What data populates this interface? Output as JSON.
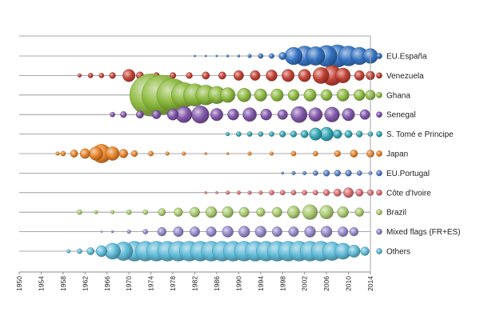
{
  "chart_data": {
    "type": "scatter",
    "subtype": "bubble-timeline",
    "title": "",
    "xlabel": "",
    "ylabel": "",
    "xlim": [
      1950,
      2014
    ],
    "x_ticks": [
      1950,
      1954,
      1958,
      1962,
      1966,
      1970,
      1974,
      1978,
      1982,
      1986,
      1990,
      1994,
      1998,
      2002,
      2006,
      2010,
      2014
    ],
    "x_tick_labels": [
      "1950",
      "1954",
      "1958",
      "1962",
      "1966",
      "1970",
      "1974",
      "1978",
      "1982",
      "1986",
      "1990",
      "1994",
      "1998",
      "2002",
      "2006",
      "2010",
      "2014"
    ],
    "legend_position": "right",
    "grid": "horizontal lines per series",
    "series": [
      {
        "name": "EU.España",
        "color": "#2f6fc0",
        "x": [
          1982,
          1984,
          1986,
          1988,
          1990,
          1992,
          1994,
          1996,
          1998,
          2000,
          2002,
          2004,
          2006,
          2008,
          2010,
          2012,
          2014
        ],
        "values": [
          1,
          1,
          1,
          2,
          2,
          3,
          4,
          4,
          6,
          14,
          16,
          15,
          17,
          18,
          16,
          14,
          12
        ]
      },
      {
        "name": "Venezuela",
        "color": "#c0392b",
        "x": [
          1961,
          1963,
          1965,
          1967,
          1970,
          1972,
          1975,
          1978,
          1981,
          1984,
          1987,
          1990,
          1993,
          1996,
          1999,
          2002,
          2005,
          2007,
          2009,
          2012,
          2014
        ],
        "values": [
          3,
          4,
          4,
          5,
          10,
          6,
          5,
          5,
          5,
          6,
          6,
          8,
          8,
          9,
          10,
          10,
          13,
          16,
          12,
          8,
          7
        ]
      },
      {
        "name": "Ghana",
        "color": "#8ab83a",
        "x": [
          1974,
          1976,
          1978,
          1980,
          1982,
          1984,
          1986,
          1988,
          1991,
          1994,
          1997,
          2000,
          2003,
          2006,
          2009,
          2012,
          2014
        ],
        "values": [
          34,
          32,
          26,
          20,
          18,
          16,
          14,
          12,
          11,
          10,
          10,
          9,
          10,
          9,
          10,
          9,
          8
        ]
      },
      {
        "name": "Senegal",
        "color": "#7b4fa6",
        "x": [
          1967,
          1969,
          1972,
          1975,
          1978,
          1980,
          1983,
          1986,
          1989,
          1992,
          1995,
          1998,
          2001,
          2004,
          2007,
          2010,
          2013
        ],
        "values": [
          4,
          5,
          6,
          7,
          9,
          13,
          14,
          10,
          9,
          11,
          9,
          8,
          13,
          11,
          12,
          10,
          8
        ]
      },
      {
        "name": "S. Tomé e Principe",
        "color": "#2aa3b3",
        "x": [
          1988,
          1990,
          1992,
          1994,
          1996,
          1998,
          2000,
          2002,
          2004,
          2006,
          2008,
          2010,
          2012,
          2014
        ],
        "values": [
          3,
          4,
          4,
          4,
          4,
          5,
          5,
          6,
          10,
          11,
          7,
          6,
          5,
          4
        ]
      },
      {
        "name": "Japan",
        "color": "#e67e22",
        "x": [
          1957,
          1958,
          1960,
          1962,
          1964,
          1965,
          1967,
          1969,
          1971,
          1974,
          1977,
          1980,
          1984,
          1988,
          1992,
          1996,
          2000,
          2004,
          2008,
          2011,
          2014
        ],
        "values": [
          3,
          4,
          6,
          8,
          11,
          15,
          11,
          7,
          5,
          4,
          3,
          3,
          2,
          2,
          3,
          3,
          4,
          4,
          5,
          6,
          6
        ]
      },
      {
        "name": "EU.Portugal",
        "color": "#4f7bc0",
        "x": [
          1998,
          2000,
          2002,
          2004,
          2006,
          2008,
          2010,
          2012,
          2014
        ],
        "values": [
          2,
          3,
          3,
          4,
          5,
          5,
          5,
          4,
          3
        ]
      },
      {
        "name": "Côte d'Ivoire",
        "color": "#d9686b",
        "x": [
          1984,
          1986,
          1988,
          1990,
          1992,
          1994,
          1996,
          1998,
          2000,
          2002,
          2004,
          2006,
          2008,
          2010,
          2012,
          2014
        ],
        "values": [
          2,
          2,
          3,
          3,
          3,
          3,
          4,
          4,
          4,
          4,
          4,
          5,
          6,
          8,
          6,
          5
        ]
      },
      {
        "name": "Brazil",
        "color": "#a6c86a",
        "x": [
          1961,
          1964,
          1967,
          1970,
          1973,
          1976,
          1979,
          1982,
          1985,
          1988,
          1991,
          1994,
          1997,
          2000,
          2003,
          2006,
          2009,
          2012
        ],
        "values": [
          4,
          3,
          3,
          4,
          4,
          6,
          7,
          8,
          9,
          9,
          8,
          7,
          8,
          10,
          12,
          11,
          9,
          7
        ]
      },
      {
        "name": "Mixed flags (FR+ES)",
        "color": "#9184c8",
        "x": [
          1965,
          1967,
          1970,
          1973,
          1976,
          1979,
          1982,
          1985,
          1988,
          1991,
          1994,
          1997,
          2000,
          2003,
          2006,
          2009,
          2011
        ],
        "values": [
          1,
          2,
          3,
          4,
          7,
          8,
          8,
          8,
          9,
          9,
          9,
          8,
          8,
          9,
          9,
          8,
          7
        ]
      },
      {
        "name": "Others",
        "color": "#5ab8d6",
        "x": [
          1959,
          1961,
          1963,
          1965,
          1967,
          1969,
          1971,
          1973,
          1975,
          1977,
          1979,
          1981,
          1983,
          1985,
          1987,
          1989,
          1991,
          1993,
          1995,
          1997,
          1999,
          2001,
          2003,
          2005,
          2007,
          2009,
          2011,
          2013
        ],
        "values": [
          3,
          4,
          6,
          9,
          13,
          15,
          16,
          16,
          16,
          16,
          16,
          16,
          16,
          16,
          16,
          16,
          16,
          16,
          16,
          16,
          16,
          16,
          16,
          16,
          15,
          13,
          10,
          7
        ]
      }
    ]
  }
}
